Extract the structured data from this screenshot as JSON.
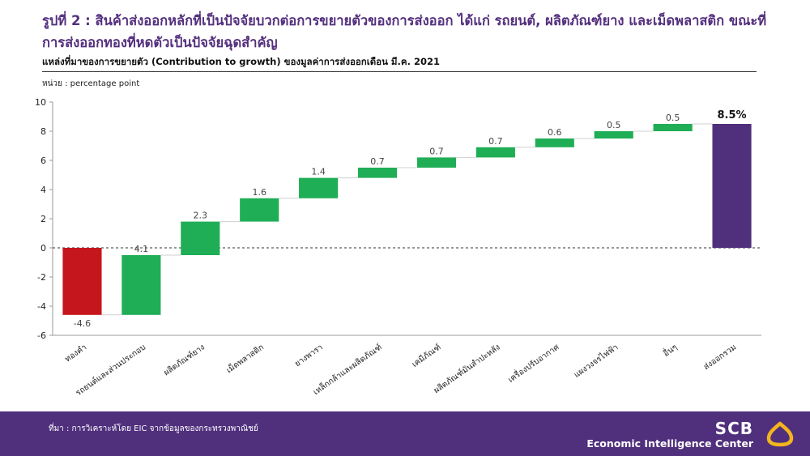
{
  "header": {
    "title": "รูปที่ 2 : สินค้าส่งออกหลักที่เป็นปัจจัยบวกต่อการขยายตัวของการส่งออก ได้แก่ รถยนต์, ผลิตภัณฑ์ยาง และเม็ดพลาสติก ขณะที่การส่งออกทองที่หดตัวเป็นปัจจัยฉุดสำคัญ",
    "subtitle": "แหล่งที่มาของการขยายตัว (Contribution to growth) ของมูลค่าการส่งออกเดือน มี.ค. 2021",
    "unit": "หน่วย : percentage point"
  },
  "colors": {
    "negative": "#c4161c",
    "positive": "#1fae55",
    "total": "#50307d",
    "brand": "#54307e"
  },
  "chart_data": {
    "type": "waterfall",
    "categories": [
      "ทองคำ",
      "รถยนต์และส่วนประกอบ",
      "ผลิตภัณฑ์ยาง",
      "เม็ดพลาสติก",
      "ยางพารา",
      "เหล็กกล้าและผลิตภัณฑ์",
      "เคมีภัณฑ์",
      "ผลิตภัณฑ์มันสำปะหลัง",
      "เครื่องปรับอากาศ",
      "แผงวงจรไฟฟ้า",
      "อื่นๆ",
      "ส่งออกรวม"
    ],
    "values": [
      -4.6,
      4.1,
      2.3,
      1.6,
      1.4,
      0.7,
      0.7,
      0.7,
      0.6,
      0.5,
      0.5,
      8.5
    ],
    "data_labels": [
      "-4.6",
      "4.1",
      "2.3",
      "1.6",
      "1.4",
      "0.7",
      "0.7",
      "0.7",
      "0.6",
      "0.5",
      "0.5",
      "8.5%"
    ],
    "total_index": 11,
    "yticks": [
      "10",
      "8",
      "6",
      "4",
      "2",
      "0",
      "-2",
      "-4",
      "-6"
    ],
    "ylim": [
      -6,
      10
    ],
    "grid": false
  },
  "footer": {
    "source": "ที่มา : การวิเคราะห์โดย EIC จากข้อมูลของกระทรวงพาณิชย์",
    "brand_name": "SCB",
    "brand_sub": "Economic Intelligence Center"
  }
}
